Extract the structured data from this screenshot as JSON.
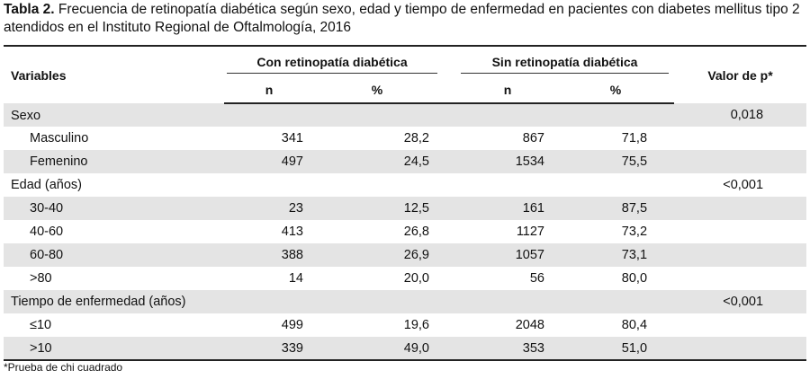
{
  "caption": {
    "label": "Tabla 2.",
    "text": " Frecuencia de retinopatía diabética según sexo, edad y tiempo de enfermedad en pacientes con diabetes mellitus tipo 2 atendidos en el Instituto Regional de Oftalmología, 2016"
  },
  "headers": {
    "variables": "Variables",
    "group_with": "Con retinopatía diabética",
    "group_without": "Sin retinopatía diabética",
    "p_value": "Valor de p*",
    "n": "n",
    "pct": "%"
  },
  "rows": [
    {
      "label": "Sexo",
      "p": "0,018"
    },
    {
      "label": "Masculino",
      "n1": "341",
      "p1": "28,2",
      "n2": "867",
      "p2": "71,8"
    },
    {
      "label": "Femenino",
      "n1": "497",
      "p1": "24,5",
      "n2": "1534",
      "p2": "75,5"
    },
    {
      "label": "Edad (años)",
      "p": "<0,001"
    },
    {
      "label": "30-40",
      "n1": "23",
      "p1": "12,5",
      "n2": "161",
      "p2": "87,5"
    },
    {
      "label": "40-60",
      "n1": "413",
      "p1": "26,8",
      "n2": "1127",
      "p2": "73,2"
    },
    {
      "label": "60-80",
      "n1": "388",
      "p1": "26,9",
      "n2": "1057",
      "p2": "73,1"
    },
    {
      "label": ">80",
      "n1": "14",
      "p1": "20,0",
      "n2": "56",
      "p2": "80,0"
    },
    {
      "label": "Tiempo de enfermedad (años)",
      "p": "<0,001"
    },
    {
      "label": "≤10",
      "n1": "499",
      "p1": "19,6",
      "n2": "2048",
      "p2": "80,4"
    },
    {
      "label": ">10",
      "n1": "339",
      "p1": "49,0",
      "n2": "353",
      "p2": "51,0"
    }
  ],
  "footnote": "*Prueba de chi cuadrado"
}
